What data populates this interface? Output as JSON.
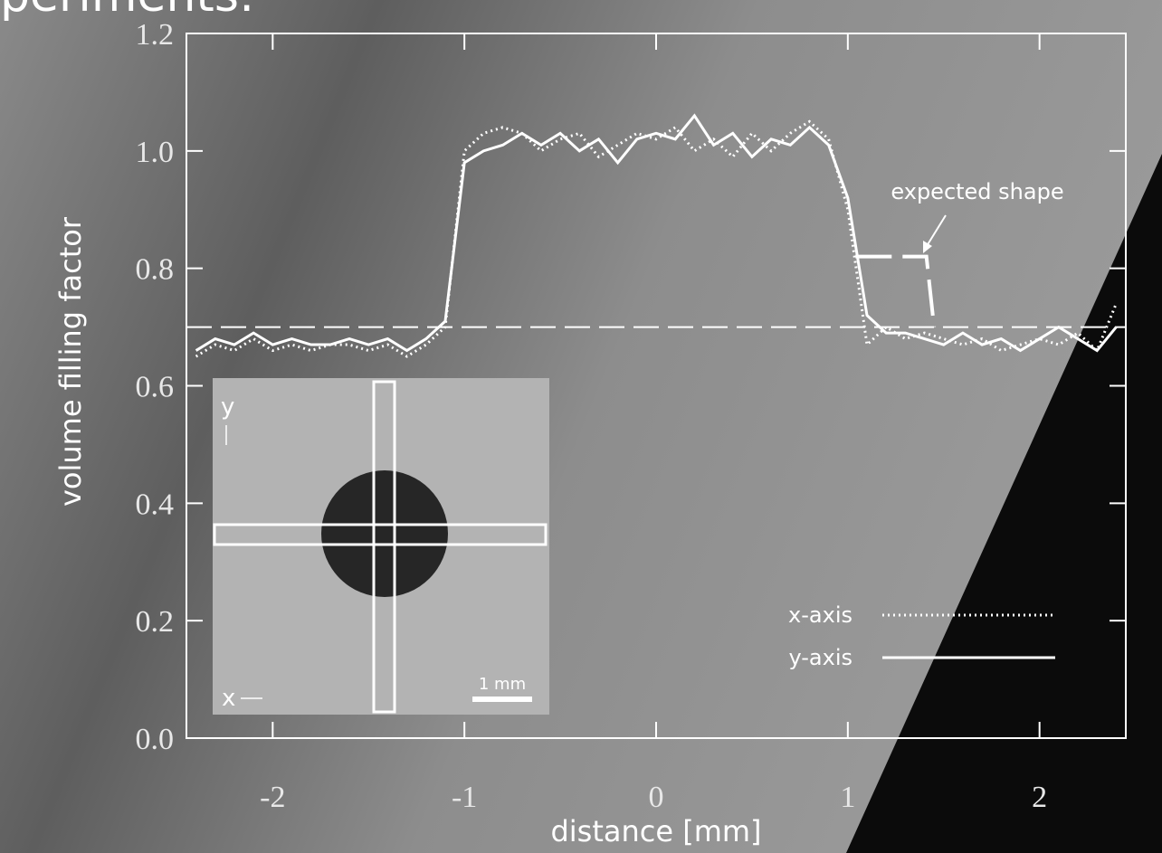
{
  "chart_data": {
    "type": "line",
    "title": "periments:",
    "xlabel": "distance [mm]",
    "ylabel": "volume filling factor",
    "xlim": [
      -2.45,
      2.45
    ],
    "ylim": [
      0,
      1.2
    ],
    "xticks": [
      -2,
      -1,
      0,
      1,
      2
    ],
    "yticks": [
      {
        "value": 0,
        "label": "0.0"
      },
      0.2,
      0.4,
      0.6,
      0.8,
      {
        "value": 1,
        "label": "1.0"
      },
      1.2
    ],
    "x": [
      -2.4,
      -2.3,
      -2.2,
      -2.1,
      -2.0,
      -1.9,
      -1.8,
      -1.7,
      -1.6,
      -1.5,
      -1.4,
      -1.3,
      -1.2,
      -1.1,
      -1.0,
      -0.9,
      -0.8,
      -0.7,
      -0.6,
      -0.5,
      -0.4,
      -0.3,
      -0.2,
      -0.1,
      0.0,
      0.1,
      0.2,
      0.3,
      0.4,
      0.5,
      0.6,
      0.7,
      0.8,
      0.9,
      1.0,
      1.1,
      1.2,
      1.3,
      1.4,
      1.5,
      1.6,
      1.7,
      1.8,
      1.9,
      2.0,
      2.1,
      2.2,
      2.3,
      2.4
    ],
    "series": [
      {
        "name": "x-axis",
        "color": "#ffffff",
        "dash": "dotted",
        "values": [
          0.65,
          0.67,
          0.66,
          0.68,
          0.66,
          0.67,
          0.66,
          0.67,
          0.67,
          0.66,
          0.67,
          0.65,
          0.67,
          0.7,
          1.0,
          1.03,
          1.04,
          1.03,
          1.0,
          1.02,
          1.03,
          0.99,
          1.01,
          1.03,
          1.02,
          1.04,
          1.0,
          1.02,
          0.99,
          1.03,
          1.0,
          1.03,
          1.05,
          1.02,
          0.9,
          0.67,
          0.7,
          0.68,
          0.69,
          0.68,
          0.67,
          0.68,
          0.66,
          0.67,
          0.68,
          0.67,
          0.69,
          0.66,
          0.74
        ]
      },
      {
        "name": "y-axis",
        "color": "#ffffff",
        "dash": "solid",
        "values": [
          0.66,
          0.68,
          0.67,
          0.69,
          0.67,
          0.68,
          0.67,
          0.67,
          0.68,
          0.67,
          0.68,
          0.66,
          0.68,
          0.71,
          0.98,
          1.0,
          1.01,
          1.03,
          1.01,
          1.03,
          1.0,
          1.02,
          0.98,
          1.02,
          1.03,
          1.02,
          1.06,
          1.01,
          1.03,
          0.99,
          1.02,
          1.01,
          1.04,
          1.01,
          0.92,
          0.72,
          0.69,
          0.69,
          0.68,
          0.67,
          0.69,
          0.67,
          0.68,
          0.66,
          0.68,
          0.7,
          0.68,
          0.66,
          0.7
        ]
      }
    ],
    "reference_line": 0.7,
    "expected_shape": {
      "x": [
        1.04,
        1.41,
        1.45
      ],
      "values": [
        0.82,
        0.82,
        0.7
      ]
    },
    "annotation": "expected shape",
    "inset_labels": {
      "y": "y",
      "x": "x",
      "scale": "1 mm"
    }
  }
}
